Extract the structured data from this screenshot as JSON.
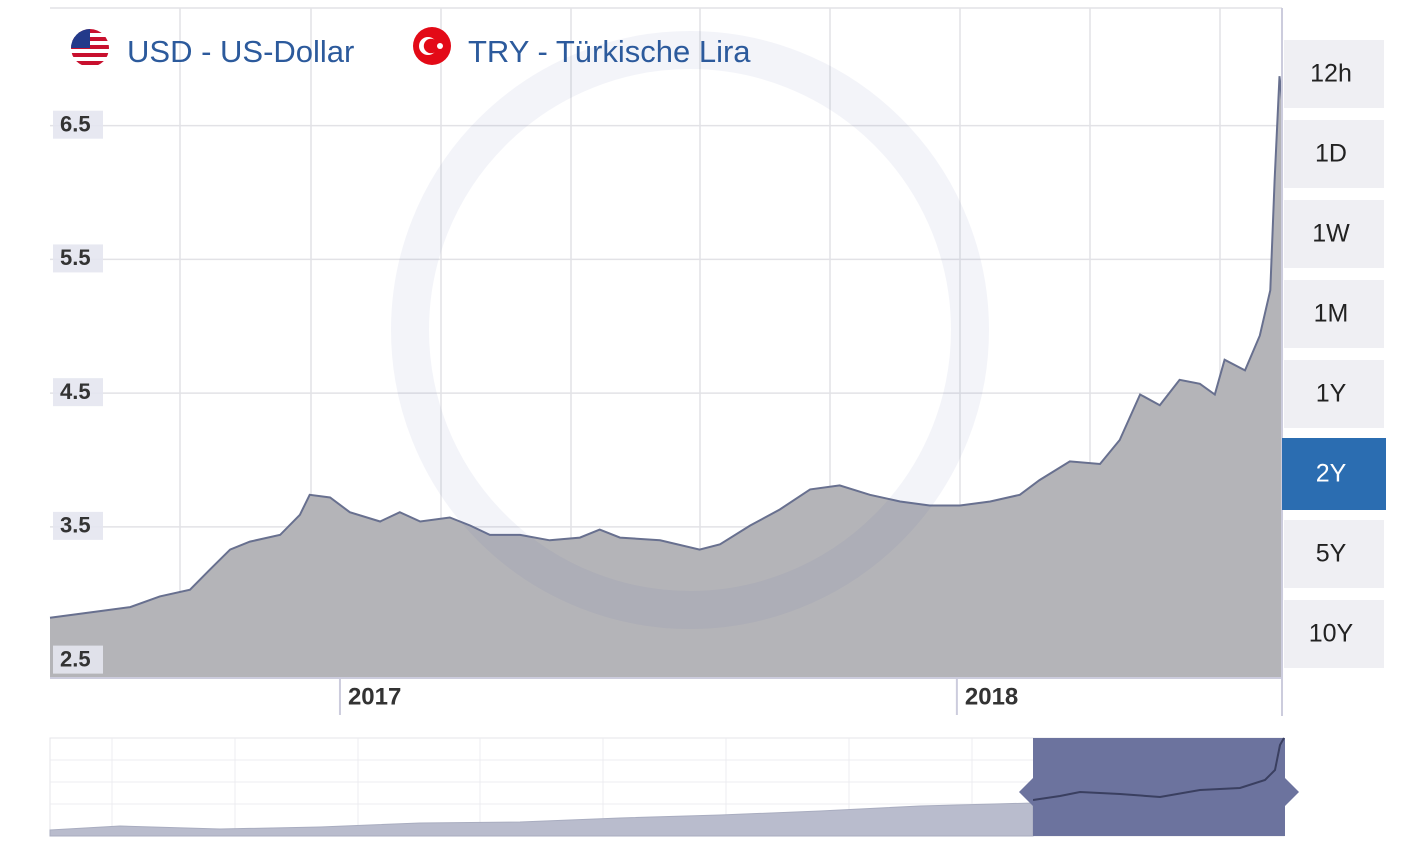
{
  "chart_data": {
    "type": "area",
    "legend": [
      "USD - US-Dollar",
      "TRY - Türkische Lira"
    ],
    "x": [
      2016.53,
      2016.611,
      2016.66,
      2016.708,
      2016.757,
      2016.789,
      2016.822,
      2016.854,
      2016.903,
      2016.935,
      2016.951,
      2016.984,
      2017.016,
      2017.065,
      2017.097,
      2017.13,
      2017.178,
      2017.211,
      2017.243,
      2017.292,
      2017.34,
      2017.389,
      2017.421,
      2017.454,
      2017.519,
      2017.583,
      2017.616,
      2017.665,
      2017.713,
      2017.762,
      2017.81,
      2017.859,
      2017.908,
      2017.956,
      2018.005,
      2018.054,
      2018.102,
      2018.134,
      2018.183,
      2018.232,
      2018.264,
      2018.297,
      2018.329,
      2018.361,
      2018.394,
      2018.418,
      2018.434,
      2018.467,
      2018.491,
      2018.508,
      2018.515,
      2018.523,
      2018.527
    ],
    "values": [
      2.82,
      2.87,
      2.9,
      2.98,
      3.03,
      3.18,
      3.33,
      3.39,
      3.44,
      3.59,
      3.74,
      3.72,
      3.61,
      3.54,
      3.61,
      3.54,
      3.57,
      3.51,
      3.44,
      3.44,
      3.4,
      3.42,
      3.48,
      3.42,
      3.4,
      3.33,
      3.37,
      3.51,
      3.63,
      3.78,
      3.81,
      3.74,
      3.69,
      3.66,
      3.66,
      3.69,
      3.74,
      3.85,
      3.99,
      3.97,
      4.15,
      4.49,
      4.41,
      4.6,
      4.57,
      4.49,
      4.75,
      4.67,
      4.93,
      5.27,
      6.09,
      6.87,
      6.69
    ],
    "color": "#68708f",
    "fill": "#b4b4b8",
    "xlim": [
      2016.53,
      2018.527
    ],
    "xticks": [
      2017,
      2018
    ],
    "ylim": [
      2.37,
      7.38
    ],
    "yticks": [
      2.5,
      3.5,
      4.5,
      5.5,
      6.5
    ],
    "grid": true,
    "range_buttons": [
      "12h",
      "1D",
      "1W",
      "1M",
      "1Y",
      "2Y",
      "5Y",
      "10Y"
    ],
    "selected_range": "2Y"
  }
}
